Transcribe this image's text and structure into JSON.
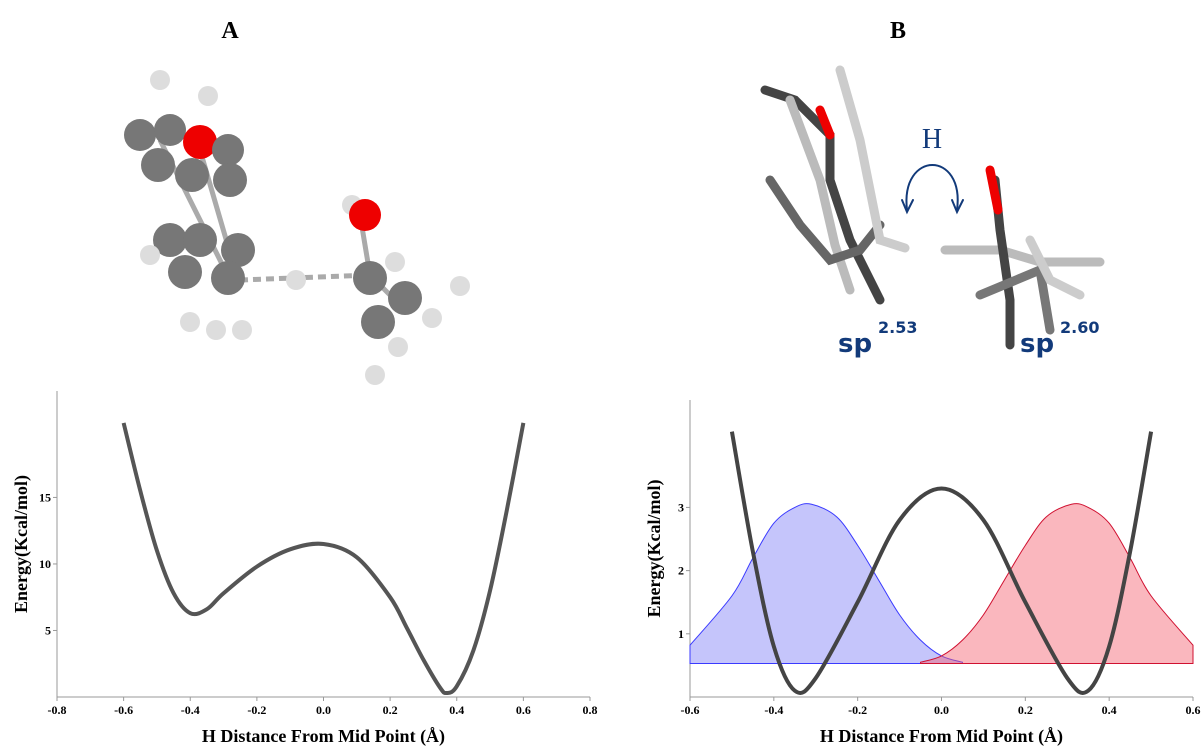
{
  "chart_data": [
    {
      "type": "line",
      "title": "A",
      "xlabel": "H Distance From Mid Point (Å)",
      "ylabel": "Energy(Kcal/mol)",
      "xlim": [
        -0.8,
        0.8
      ],
      "ylim": [
        0,
        23
      ],
      "xticks": [
        -0.8,
        -0.6,
        -0.4,
        -0.2,
        {
          "value": 0,
          "label": "0.0"
        },
        0.2,
        0.4,
        0.6,
        0.8
      ],
      "yticks": [
        5,
        10,
        15
      ],
      "grid": false,
      "series": [
        {
          "color": "#555555",
          "x": [
            -0.6,
            -0.55,
            -0.5,
            -0.45,
            -0.4,
            -0.35,
            -0.3,
            -0.2,
            -0.1,
            0,
            0.1,
            0.2,
            0.25,
            0.3,
            0.35,
            0.37,
            0.4,
            0.45,
            0.5,
            0.55,
            0.6
          ],
          "values": [
            20.6,
            15.5,
            11,
            7.8,
            6.3,
            6.6,
            7.8,
            9.8,
            11.1,
            11.5,
            10.5,
            7.5,
            5.2,
            2.8,
            0.7,
            0.3,
            0.8,
            3.5,
            8,
            14,
            20.6
          ]
        }
      ]
    },
    {
      "type": "line",
      "title": "B",
      "xlabel": "H Distance From Mid Point (Å)",
      "ylabel": "Energy(Kcal/mol)",
      "annotations": [
        "H",
        "sp",
        "2.53",
        "sp",
        "2.60"
      ],
      "xlim": [
        -0.6,
        0.6
      ],
      "ylim": [
        0,
        4.7
      ],
      "xticks": [
        -0.6,
        -0.4,
        -0.2,
        {
          "value": 0,
          "label": "0.0"
        },
        0.2,
        0.4,
        0.6
      ],
      "yticks": [
        1,
        2,
        3
      ],
      "grid": false,
      "area_baseline": 0.53,
      "series": [
        {
          "color": "#3a3aff",
          "fill": "rgba(110,110,245,0.4)",
          "area": true,
          "x": [
            -0.6,
            -0.5,
            -0.45,
            -0.4,
            -0.35,
            -0.31,
            -0.25,
            -0.2,
            -0.15,
            -0.1,
            -0.05,
            0,
            0.05
          ],
          "values": [
            0.82,
            1.6,
            2.2,
            2.75,
            3.0,
            3.05,
            2.85,
            2.4,
            1.85,
            1.3,
            0.9,
            0.65,
            0.55
          ]
        },
        {
          "color": "#d01030",
          "fill": "rgba(245,95,110,0.45)",
          "area": true,
          "x": [
            -0.05,
            0,
            0.05,
            0.1,
            0.15,
            0.2,
            0.25,
            0.31,
            0.35,
            0.4,
            0.45,
            0.5,
            0.6
          ],
          "values": [
            0.55,
            0.65,
            0.9,
            1.3,
            1.85,
            2.4,
            2.85,
            3.05,
            3.0,
            2.75,
            2.2,
            1.6,
            0.82
          ]
        },
        {
          "color": "#444444",
          "x": [
            -0.5,
            -0.45,
            -0.4,
            -0.35,
            -0.3,
            -0.2,
            -0.1,
            0,
            0.1,
            0.2,
            0.3,
            0.35,
            0.4,
            0.45,
            0.5
          ],
          "values": [
            4.2,
            2.3,
            0.8,
            0.1,
            0.3,
            1.5,
            2.8,
            3.3,
            2.8,
            1.5,
            0.3,
            0.1,
            0.8,
            2.3,
            4.2
          ]
        }
      ]
    }
  ]
}
